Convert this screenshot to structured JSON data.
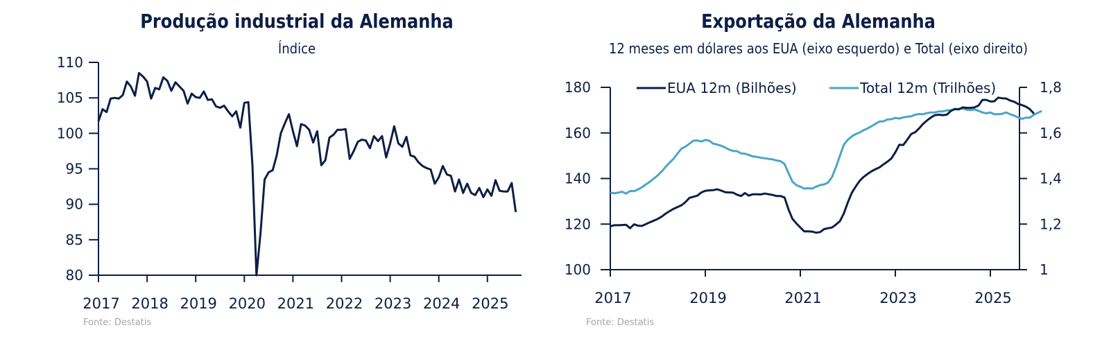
{
  "chart_data": [
    {
      "type": "line",
      "title": "Produção industrial da Alemanha",
      "subtitle": "Índice",
      "source": "Fonte: Destatis",
      "xlabel": "",
      "ylabel": "",
      "x_ticks": [
        "2017",
        "2018",
        "2019",
        "2020",
        "2021",
        "2022",
        "2023",
        "2024",
        "2025"
      ],
      "y_ticks": [
        "80",
        "85",
        "90",
        "95",
        "100",
        "105",
        "110"
      ],
      "ylim": [
        80,
        110
      ],
      "xlim": [
        2017.0,
        2025.7
      ],
      "grid": false,
      "legend": "none",
      "series": [
        {
          "name": "Produção industrial",
          "color": "#0b1f45",
          "start": "2017-01",
          "frequency": "monthly",
          "values": [
            101.7,
            103.4,
            103.0,
            104.9,
            105.0,
            104.9,
            105.4,
            107.3,
            106.6,
            105.3,
            108.5,
            108.0,
            107.3,
            104.9,
            106.4,
            106.2,
            107.9,
            107.4,
            106.0,
            107.2,
            106.6,
            106.0,
            104.2,
            105.6,
            105.1,
            105.0,
            105.9,
            104.7,
            104.8,
            103.8,
            103.6,
            103.9,
            103.1,
            102.4,
            103.1,
            100.8,
            104.3,
            104.4,
            95.5,
            80.0,
            86.0,
            93.5,
            94.5,
            94.8,
            96.9,
            100.0,
            101.4,
            102.7,
            100.3,
            98.2,
            101.3,
            101.1,
            100.5,
            98.7,
            100.3,
            95.5,
            96.2,
            99.4,
            99.8,
            100.5,
            100.5,
            100.6,
            96.4,
            97.5,
            98.8,
            99.1,
            99.0,
            97.9,
            99.6,
            98.9,
            99.6,
            96.6,
            98.6,
            101.0,
            98.6,
            98.1,
            99.5,
            96.9,
            96.7,
            95.9,
            95.4,
            95.1,
            94.9,
            92.9,
            93.8,
            95.4,
            94.2,
            94.0,
            91.8,
            93.5,
            91.6,
            92.9,
            91.6,
            91.3,
            92.3,
            91.0,
            92.1,
            91.2,
            93.4,
            91.9,
            91.8,
            91.8,
            93.0,
            88.9
          ]
        }
      ]
    },
    {
      "type": "line",
      "title": "Exportação da Alemanha",
      "subtitle": "12 meses em dólares aos EUA (eixo esquerdo) e Total (eixo direito)",
      "source": "Fonte: Destatis",
      "xlabel": "",
      "ylabel": "",
      "x_ticks": [
        "2017",
        "2019",
        "2021",
        "2023",
        "2025"
      ],
      "y_ticks_left": [
        "100",
        "120",
        "140",
        "160",
        "180"
      ],
      "y_ticks_right": [
        "1",
        "1,2",
        "1,4",
        "1,6",
        "1,8"
      ],
      "ylim_left": [
        100,
        180
      ],
      "ylim_right": [
        1.0,
        1.8
      ],
      "xlim": [
        2017.0,
        2025.7
      ],
      "grid": false,
      "legend": "top",
      "series": [
        {
          "name": "EUA 12m (Bilhões)",
          "axis": "left",
          "color": "#0b1f45",
          "start": "2017-01",
          "frequency": "monthly",
          "values": [
            119.0,
            119.5,
            119.5,
            119.6,
            119.7,
            118.2,
            119.9,
            119.3,
            119.2,
            120.0,
            120.8,
            121.5,
            122.3,
            123.3,
            124.6,
            125.7,
            126.7,
            127.5,
            128.3,
            129.7,
            131.5,
            132.0,
            132.5,
            133.9,
            134.6,
            134.8,
            134.9,
            135.3,
            134.7,
            134.0,
            133.9,
            133.8,
            132.9,
            132.3,
            133.6,
            132.5,
            133.1,
            133.1,
            133.0,
            133.4,
            133.1,
            132.8,
            132.3,
            132.3,
            131.7,
            126.5,
            122.3,
            120.3,
            118.5,
            116.8,
            116.8,
            116.7,
            116.2,
            116.5,
            117.8,
            118.2,
            118.5,
            119.8,
            121.3,
            124.7,
            129.5,
            133.7,
            136.5,
            139.0,
            140.7,
            142.0,
            143.2,
            144.1,
            144.9,
            146.2,
            147.4,
            148.8,
            151.5,
            154.8,
            154.7,
            157.0,
            159.5,
            160.3,
            162.0,
            164.0,
            165.5,
            166.8,
            167.8,
            168.0,
            167.8,
            168.0,
            169.6,
            170.5,
            170.3,
            171.2,
            171.0,
            171.0,
            171.2,
            172.0,
            174.5,
            174.5,
            173.8,
            173.9,
            175.5,
            175.2,
            175.1,
            174.2,
            173.7,
            172.7,
            172.2,
            171.5,
            170.4,
            168.5
          ]
        },
        {
          "name": "Total 12m (Trilhões)",
          "axis": "right",
          "color": "#4aa5c8",
          "start": "2017-01",
          "frequency": "monthly",
          "values": [
            1.338,
            1.335,
            1.338,
            1.342,
            1.334,
            1.345,
            1.345,
            1.352,
            1.362,
            1.374,
            1.386,
            1.4,
            1.414,
            1.431,
            1.452,
            1.47,
            1.487,
            1.51,
            1.532,
            1.54,
            1.553,
            1.566,
            1.567,
            1.562,
            1.569,
            1.566,
            1.553,
            1.549,
            1.544,
            1.536,
            1.527,
            1.521,
            1.52,
            1.51,
            1.509,
            1.503,
            1.497,
            1.495,
            1.491,
            1.489,
            1.486,
            1.484,
            1.479,
            1.476,
            1.464,
            1.424,
            1.386,
            1.371,
            1.364,
            1.356,
            1.357,
            1.356,
            1.364,
            1.371,
            1.374,
            1.382,
            1.407,
            1.45,
            1.5,
            1.549,
            1.57,
            1.585,
            1.595,
            1.602,
            1.612,
            1.62,
            1.63,
            1.64,
            1.65,
            1.651,
            1.659,
            1.66,
            1.666,
            1.663,
            1.668,
            1.671,
            1.673,
            1.68,
            1.683,
            1.682,
            1.687,
            1.69,
            1.69,
            1.694,
            1.694,
            1.699,
            1.7,
            1.703,
            1.706,
            1.707,
            1.702,
            1.7,
            1.703,
            1.697,
            1.69,
            1.686,
            1.69,
            1.682,
            1.682,
            1.684,
            1.69,
            1.682,
            1.676,
            1.668,
            1.662,
            1.667,
            1.667,
            1.68,
            1.688,
            1.697
          ]
        }
      ]
    }
  ]
}
